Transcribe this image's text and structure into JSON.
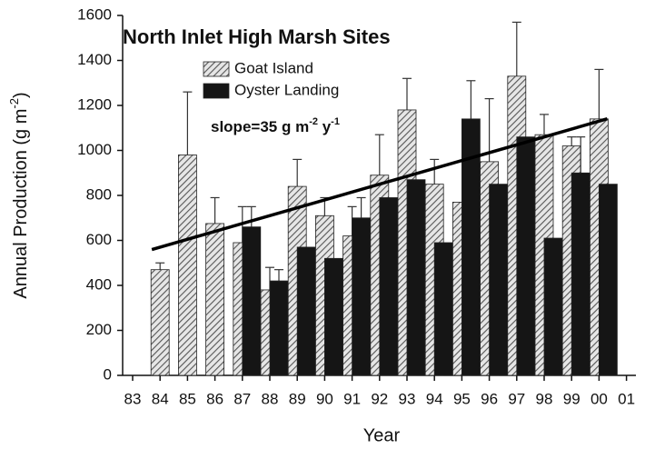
{
  "chart_data": {
    "type": "bar",
    "title": "North Inlet High Marsh Sites",
    "xlabel": "Year",
    "ylabel": [
      "Annual Production (g m",
      "-2",
      ")"
    ],
    "annotation": [
      "slope=35 g m",
      "-2",
      " y",
      "-1"
    ],
    "categories": [
      "83",
      "84",
      "85",
      "86",
      "87",
      "88",
      "89",
      "90",
      "91",
      "92",
      "93",
      "94",
      "95",
      "96",
      "97",
      "98",
      "99",
      "00",
      "01"
    ],
    "series": [
      {
        "name": "Goat Island",
        "color": "#555555",
        "values": [
          null,
          470,
          980,
          675,
          590,
          380,
          840,
          710,
          620,
          890,
          1180,
          850,
          770,
          950,
          1330,
          1070,
          1020,
          1140,
          null
        ],
        "errors": [
          null,
          30,
          280,
          115,
          160,
          100,
          120,
          80,
          130,
          180,
          140,
          110,
          null,
          280,
          240,
          90,
          40,
          220,
          null
        ]
      },
      {
        "name": "Oyster Landing",
        "color": "#151515",
        "values": [
          null,
          null,
          null,
          null,
          660,
          420,
          570,
          520,
          700,
          790,
          870,
          590,
          1140,
          850,
          1060,
          610,
          900,
          850,
          null
        ],
        "errors": [
          null,
          null,
          null,
          null,
          90,
          50,
          null,
          null,
          90,
          null,
          null,
          null,
          170,
          null,
          null,
          null,
          160,
          null,
          null
        ]
      }
    ],
    "trend": {
      "categories": [
        "84",
        "00"
      ],
      "values": [
        570,
        1130
      ]
    },
    "ylim": [
      0,
      1600
    ],
    "yticks": [
      0,
      200,
      400,
      600,
      800,
      1000,
      1200,
      1400,
      1600
    ]
  }
}
